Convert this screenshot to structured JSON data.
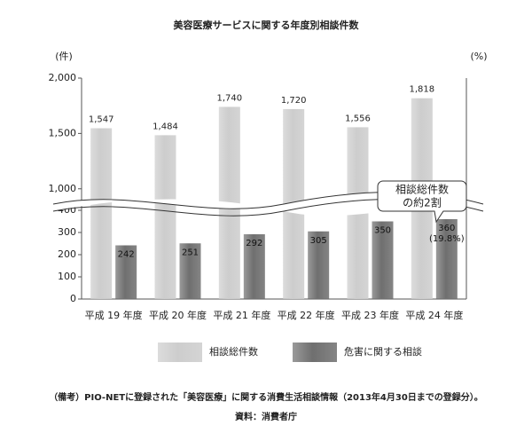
{
  "chart_data": {
    "type": "bar",
    "title": "美容医療サービスに関する年度別相談件数",
    "y_unit": "(件)",
    "y2_unit": "(%)",
    "categories": [
      "平成 19 年度",
      "平成 20 年度",
      "平成 21 年度",
      "平成 22 年度",
      "平成 23 年度",
      "平成 24 年度"
    ],
    "series": [
      {
        "name": "相談総件数",
        "color": "#cdcdcd",
        "values": [
          1547,
          1484,
          1740,
          1720,
          1556,
          1818
        ],
        "value_labels": [
          "1,547",
          "1,484",
          "1,740",
          "1,720",
          "1,556",
          "1,818"
        ]
      },
      {
        "name": "危害に関する相談",
        "color": "#6f6f6f",
        "values": [
          242,
          251,
          292,
          305,
          350,
          360
        ]
      }
    ],
    "y_segments": [
      {
        "ylim": [
          0,
          420
        ],
        "yticks": [
          0,
          100,
          200,
          300,
          400
        ]
      },
      {
        "ylim": [
          950,
          2000
        ],
        "yticks": [
          {
            "value": 1000,
            "label": "1,000"
          },
          {
            "value": 1500,
            "label": "1,500"
          },
          {
            "value": 2000,
            "label": "2,000"
          }
        ]
      }
    ],
    "annotation": "(19.8%)",
    "callout": [
      "相談総件数",
      "の約2割"
    ],
    "note": "（備考）PIO-NETに登録された「美容医療」に関する消費生活相談情報（2013年4月30日までの登録分）。",
    "source": "資料：消費者庁"
  }
}
